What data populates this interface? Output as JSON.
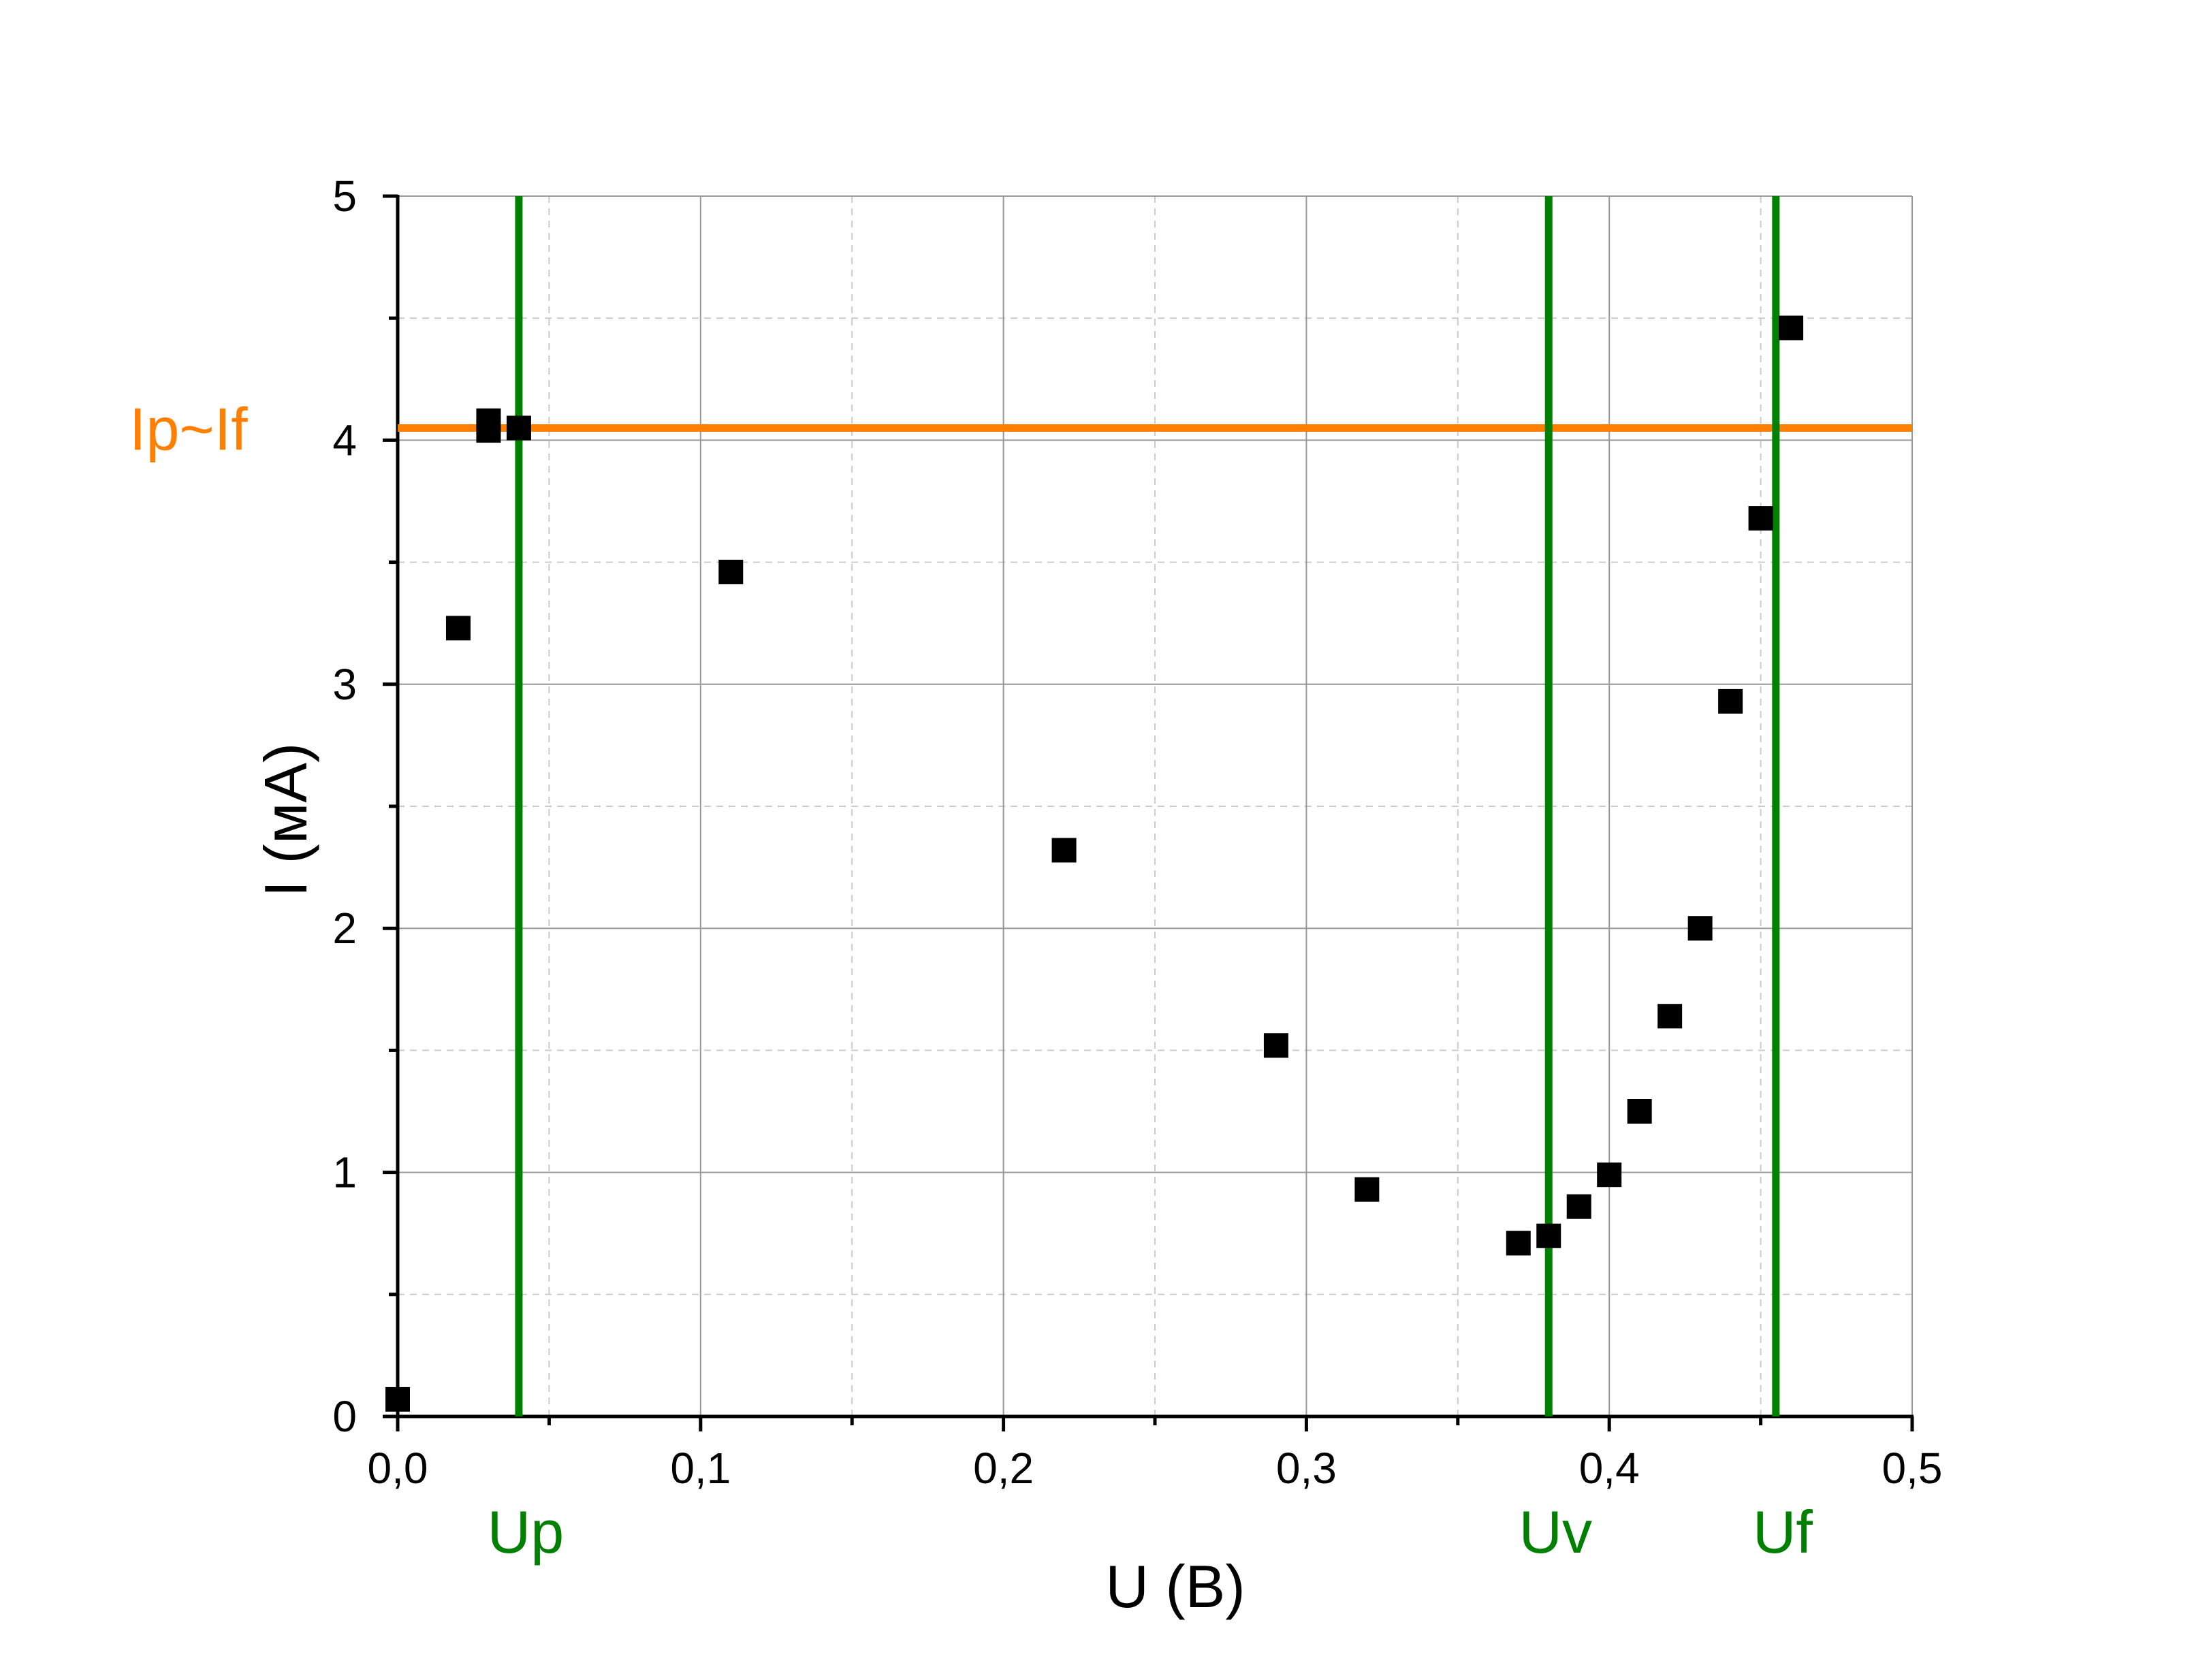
{
  "chart_data": {
    "type": "scatter",
    "title": "",
    "xlabel": "U (В)",
    "ylabel": "I (мА)",
    "xlim": [
      0,
      0.5
    ],
    "ylim": [
      0,
      5
    ],
    "x_ticks": [
      0,
      0.1,
      0.2,
      0.3,
      0.4,
      0.5
    ],
    "x_tick_labels": [
      "0,0",
      "0,1",
      "0,2",
      "0,3",
      "0,4",
      "0,5"
    ],
    "y_ticks": [
      0,
      1,
      2,
      3,
      4,
      5
    ],
    "y_tick_labels": [
      "0",
      "1",
      "2",
      "3",
      "4",
      "5"
    ],
    "grid": true,
    "series": [
      {
        "marker": "square",
        "color": "#000000",
        "points": [
          {
            "x": 0.0,
            "y": 0.07
          },
          {
            "x": 0.02,
            "y": 3.23
          },
          {
            "x": 0.03,
            "y": 4.04
          },
          {
            "x": 0.03,
            "y": 4.08
          },
          {
            "x": 0.04,
            "y": 4.05
          },
          {
            "x": 0.11,
            "y": 3.46
          },
          {
            "x": 0.22,
            "y": 2.32
          },
          {
            "x": 0.29,
            "y": 1.52
          },
          {
            "x": 0.32,
            "y": 0.93
          },
          {
            "x": 0.37,
            "y": 0.71
          },
          {
            "x": 0.38,
            "y": 0.74
          },
          {
            "x": 0.39,
            "y": 0.86
          },
          {
            "x": 0.4,
            "y": 0.99
          },
          {
            "x": 0.41,
            "y": 1.25
          },
          {
            "x": 0.42,
            "y": 1.64
          },
          {
            "x": 0.43,
            "y": 2.0
          },
          {
            "x": 0.44,
            "y": 2.93
          },
          {
            "x": 0.45,
            "y": 3.68
          },
          {
            "x": 0.46,
            "y": 4.46
          }
        ]
      }
    ],
    "reference_lines": {
      "horizontal": [
        {
          "label": "Ip~If",
          "y": 4.05,
          "color": "#ff8000"
        }
      ],
      "vertical": [
        {
          "label": "Up",
          "x": 0.04,
          "color": "#008000"
        },
        {
          "label": "Uv",
          "x": 0.38,
          "color": "#008000"
        },
        {
          "label": "Uf",
          "x": 0.455,
          "color": "#008000"
        }
      ]
    }
  }
}
